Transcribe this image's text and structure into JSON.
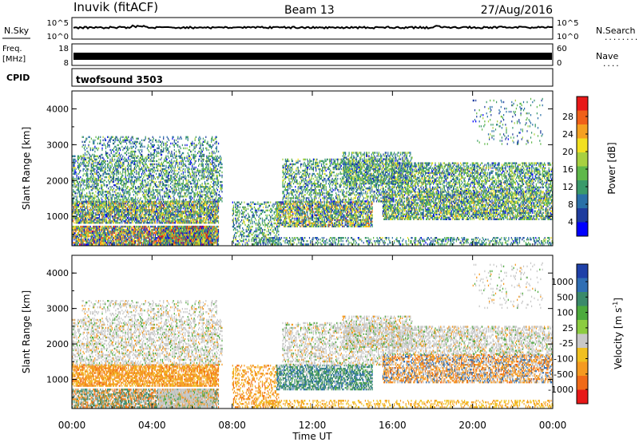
{
  "header": {
    "station": "Inuvik (fitACF)",
    "beam": "Beam 13",
    "date": "27/Aug/2016"
  },
  "strips": {
    "nsky": {
      "left_label": "N.Sky",
      "right_label": "N.Search",
      "right_dots": "........",
      "left_ticks": [
        "10^5",
        "10^0"
      ],
      "right_ticks": [
        "10^5",
        "10^0"
      ]
    },
    "freq": {
      "left_label_1": "Freq.",
      "left_label_2": "[MHz]",
      "right_label": "Nave",
      "right_dots": "....",
      "left_ticks": [
        "18",
        "8"
      ],
      "right_ticks": [
        "60",
        "0"
      ]
    },
    "cpid": {
      "label": "CPID",
      "program": "twofsound 3503"
    }
  },
  "chart_data": [
    {
      "type": "heatmap",
      "panel": "power",
      "xlabel": "Time UT",
      "ylabel": "Slant Range [km]",
      "x_ticks": [
        "00:00",
        "04:00",
        "08:00",
        "12:00",
        "16:00",
        "20:00",
        "00:00"
      ],
      "xlim_hours": [
        0,
        24
      ],
      "y_ticks": [
        1000,
        2000,
        3000,
        4000
      ],
      "ylim": [
        180,
        4500
      ],
      "colorbar_label": "Power [dB]",
      "colorbar_ticks": [
        "28",
        "24",
        "20",
        "16",
        "12",
        "8",
        "4"
      ],
      "colors_low_to_high": [
        "#0000ff",
        "#1e3c9e",
        "#2a70a8",
        "#3a9a6a",
        "#5fb84a",
        "#a8d040",
        "#f2e020",
        "#f5a020",
        "#f06018",
        "#e81818"
      ]
    },
    {
      "type": "heatmap",
      "panel": "velocity",
      "xlabel": "Time UT",
      "ylabel": "Slant Range [km]",
      "x_ticks": [
        "00:00",
        "04:00",
        "08:00",
        "12:00",
        "16:00",
        "20:00",
        "00:00"
      ],
      "xlim_hours": [
        0,
        24
      ],
      "y_ticks": [
        1000,
        2000,
        3000,
        4000
      ],
      "ylim": [
        180,
        4500
      ],
      "colorbar_label": "Velocity [m s",
      "colorbar_label_sup": "-1",
      "colorbar_label_end": "]",
      "colorbar_ticks": [
        "1000",
        "500",
        "100",
        "25",
        "-25",
        "-100",
        "-500",
        "-1000"
      ],
      "colors_high_to_low": [
        "#1e40a8",
        "#2f6eb4",
        "#3a8a6a",
        "#4caa3c",
        "#8ccc40",
        "#c8c8c8",
        "#f0c020",
        "#f59a20",
        "#f06a18",
        "#e81818"
      ]
    }
  ]
}
